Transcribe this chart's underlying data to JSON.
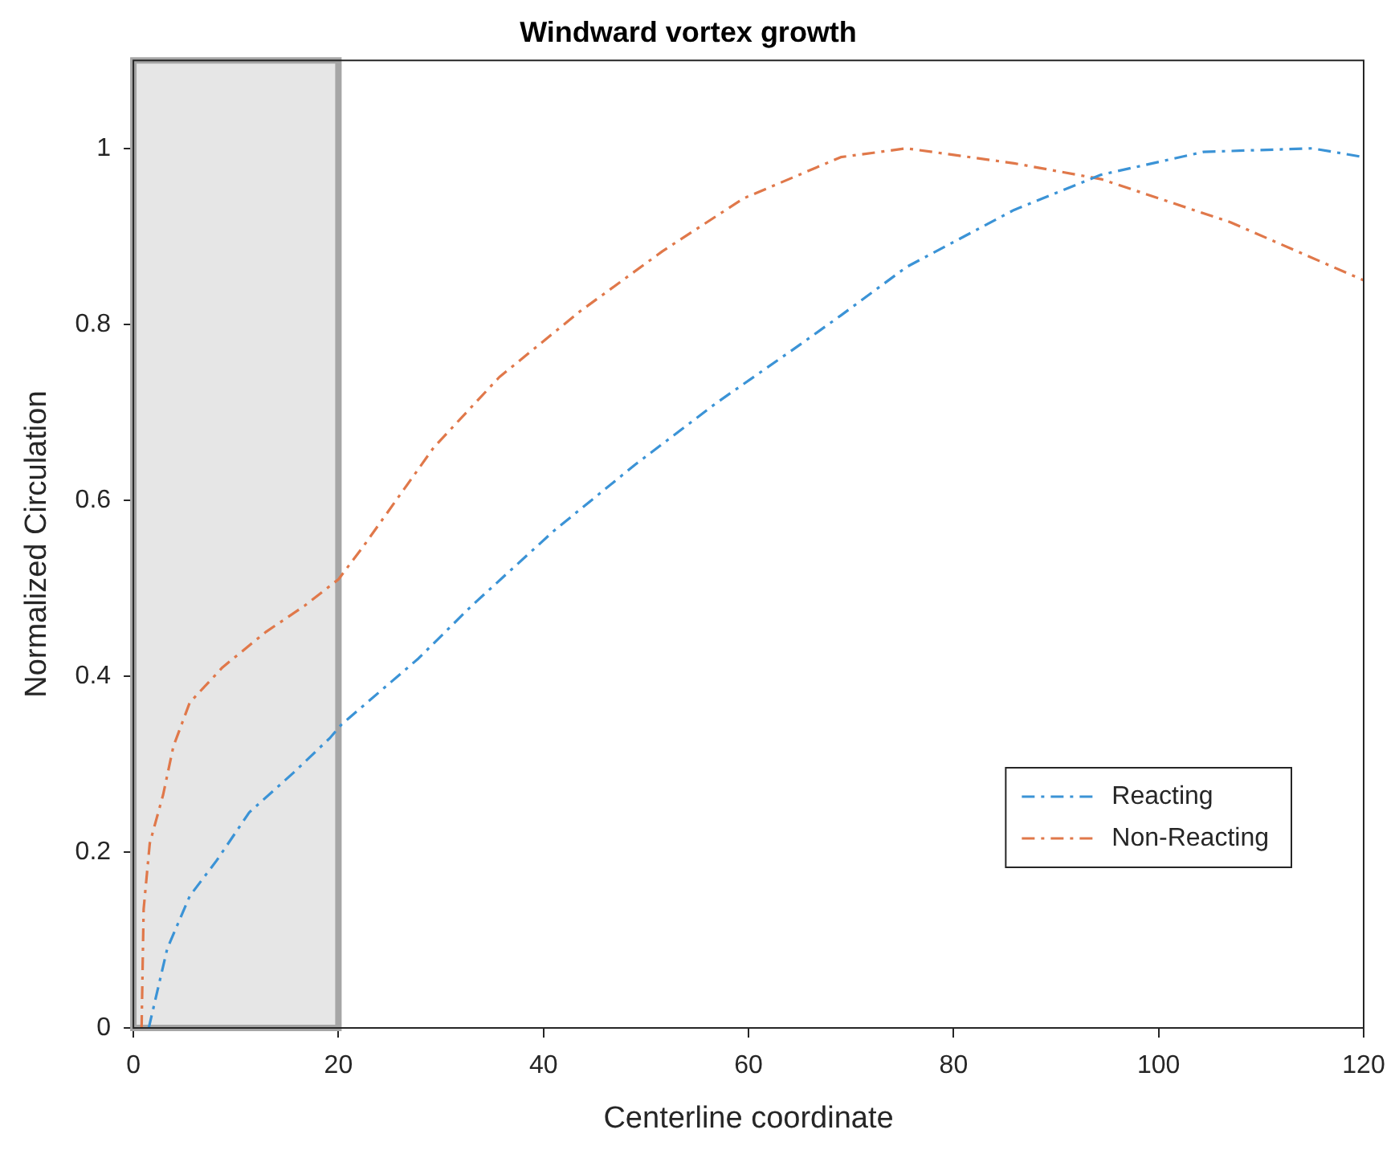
{
  "chart_data": {
    "type": "line",
    "title": "Windward vortex growth",
    "xlabel": "Centerline coordinate",
    "ylabel": "Normalized Circulation",
    "xlim": [
      0,
      120
    ],
    "xticks": [
      0,
      20,
      40,
      60,
      80,
      100,
      120
    ],
    "ylim": [
      0,
      1.1
    ],
    "yticks": [
      0,
      0.2,
      0.4,
      0.6,
      0.8,
      1
    ],
    "grid": false,
    "legend": "bottom right",
    "line_style": "dashed",
    "marker": "none",
    "bands": [
      {
        "axis": "x",
        "from": 0,
        "to": 20,
        "color": "#e6e6e6"
      }
    ],
    "series": [
      {
        "name": "Reacting",
        "color": "#3b93d6",
        "x": [
          1.5,
          2.5,
          3.3,
          5.5,
          8.1,
          11.3,
          15.6,
          19.2,
          20.3,
          27.8,
          33,
          41,
          48.9,
          56.8,
          64.8,
          69,
          75.4,
          85.9,
          94.4,
          104.4,
          115,
          120
        ],
        "values": [
          0,
          0.05,
          0.09,
          0.15,
          0.19,
          0.245,
          0.29,
          0.33,
          0.345,
          0.42,
          0.48,
          0.565,
          0.64,
          0.71,
          0.775,
          0.81,
          0.865,
          0.93,
          0.97,
          0.996,
          1,
          0.99
        ]
      },
      {
        "name": "Non-Reacting",
        "color": "#e0784a",
        "x": [
          0.8,
          1,
          1.6,
          2.9,
          3.9,
          5.5,
          8.7,
          12.9,
          16.7,
          20,
          22.4,
          29.3,
          35.7,
          43.6,
          51.6,
          59.5,
          69,
          75.4,
          85.9,
          94.4,
          107,
          120
        ],
        "values": [
          0,
          0.135,
          0.21,
          0.265,
          0.32,
          0.37,
          0.41,
          0.45,
          0.48,
          0.51,
          0.547,
          0.66,
          0.74,
          0.815,
          0.883,
          0.943,
          0.99,
          1,
          0.983,
          0.965,
          0.916,
          0.85
        ]
      }
    ]
  }
}
